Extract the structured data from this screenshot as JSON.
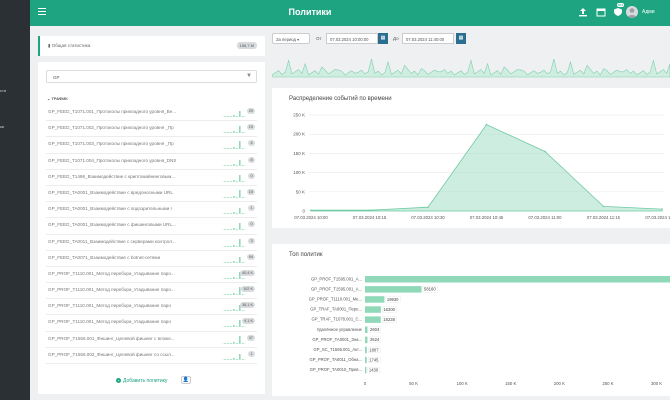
{
  "sidebar": {
    "items": [
      {
        "label": "сти"
      },
      {
        "label": "ки"
      }
    ]
  },
  "header": {
    "title": "Политики",
    "user": "Адми",
    "badge": "803"
  },
  "stats": {
    "label": "Общая статистика",
    "size": "156,7 M"
  },
  "filter": {
    "select_value": "GP",
    "group": "ТРАФИК"
  },
  "policies": [
    {
      "name": "GP_FEED_T1071.001_Протоколы прикладного уровня_Ве...",
      "count": "29"
    },
    {
      "name": "GP_FEED_T1071.002_Протоколы прикладного уровня _Пр",
      "count": "19"
    },
    {
      "name": "GP_FEED_T1071.003_Протоколы прикладного уровня _Пр",
      "count": "4"
    },
    {
      "name": "GP_FEED_T1071.004_Протоколы прикладного уровня_DNS",
      "count": "8"
    },
    {
      "name": "GP_FEED_T1496_Взаимодействие с криптомайнинговым...",
      "count": "0"
    },
    {
      "name": "GP_FEED_TA0001_Взаимодействие с вредоносными URL",
      "count": "15"
    },
    {
      "name": "GP_FEED_TA0001_Взаимодействие с подозрительными I",
      "count": "1"
    },
    {
      "name": "GP_FEED_TA0001_Взаимодействие с фишинговыми URL...",
      "count": "0"
    },
    {
      "name": "GP_FEED_TA0011_Взаимодействие с серверами контрол...",
      "count": "3"
    },
    {
      "name": "GP_FEED_TA0071_Взаимодействие с botnet-сетями",
      "count": "94"
    },
    {
      "name": "GP_PROF_T1110.001_Метод перебора_Угадывание паро...",
      "count": "40,4 K"
    },
    {
      "name": "GP_PROF_T1110.001_Метод перебора_Угадывание паро...",
      "count": "102 K"
    },
    {
      "name": "GP_PROF_T1110.001_Метод перебора_Угадывание паро",
      "count": "38,1 K"
    },
    {
      "name": "GP_PROF_T1110.001_Метод перебора_Угадывание паро",
      "count": "9,1 K"
    },
    {
      "name": "GP_PROF_T1566.001_Фишинг_Целевой фишинг с вложе...",
      "count": "37"
    },
    {
      "name": "GP_PROF_T1566.002_Фишинг_Целевой фишинг со ссыл...",
      "count": "1"
    }
  ],
  "actions": {
    "add_policy": "Добавить политику"
  },
  "date_filter": {
    "period": "За период",
    "from_label": "От",
    "from": "07.03.2024 10:00:00",
    "to_label": "До",
    "to": "07.03.2024 11:40:00"
  },
  "colors": {
    "accent": "#1fa482",
    "sidebar": "#2b3035",
    "area": "#a3dfc7",
    "bar": "#8fd8b8"
  },
  "chart_data": [
    {
      "type": "area",
      "title": "Распределение событий по времени",
      "x": [
        "07.03.2024 10:00",
        "07.03.2024 10:15",
        "07.03.2024 10:30",
        "07.03.2024 10:45",
        "07.03.2024 11:00",
        "07.03.2024 11:15",
        "07.03.2024 11:30"
      ],
      "values": [
        2000,
        2000,
        10000,
        225000,
        155000,
        12000,
        5000
      ],
      "yticks": [
        "0",
        "50 K",
        "100 K",
        "150 K",
        "200 K",
        "250 K"
      ],
      "ylim": [
        0,
        250000
      ],
      "grid": true
    },
    {
      "type": "bar",
      "orientation": "horizontal",
      "title": "Топ политик",
      "categories": [
        "GP_PROF_T1595.001_A...",
        "GP_PROF_T1595.001_A...",
        "GP_PROF_T1110.001_Ме...",
        "GP_TRAF_TA0001_Пере...",
        "GP_TRAF_T1078.001_С...",
        "Удалённое управление",
        "GP_PROF_TA0001_Зна...",
        "GP_SC_T1595.001_Акт...",
        "GP_PROF_TA0011_Обна...",
        "GP_PROF_TA0010_Прев..."
      ],
      "values": [
        320000,
        58160,
        19930,
        16300,
        16238,
        2604,
        2524,
        1807,
        1745,
        1430
      ],
      "labels": [
        "",
        "58160",
        "19930",
        "16300",
        "16238",
        "2604",
        "2524",
        "1807",
        "1745",
        "1430"
      ],
      "xticks": [
        "0",
        "50 K",
        "100 K",
        "150 K",
        "200 K",
        "250 K",
        "300 K"
      ],
      "xlim": [
        0,
        320000
      ]
    }
  ]
}
